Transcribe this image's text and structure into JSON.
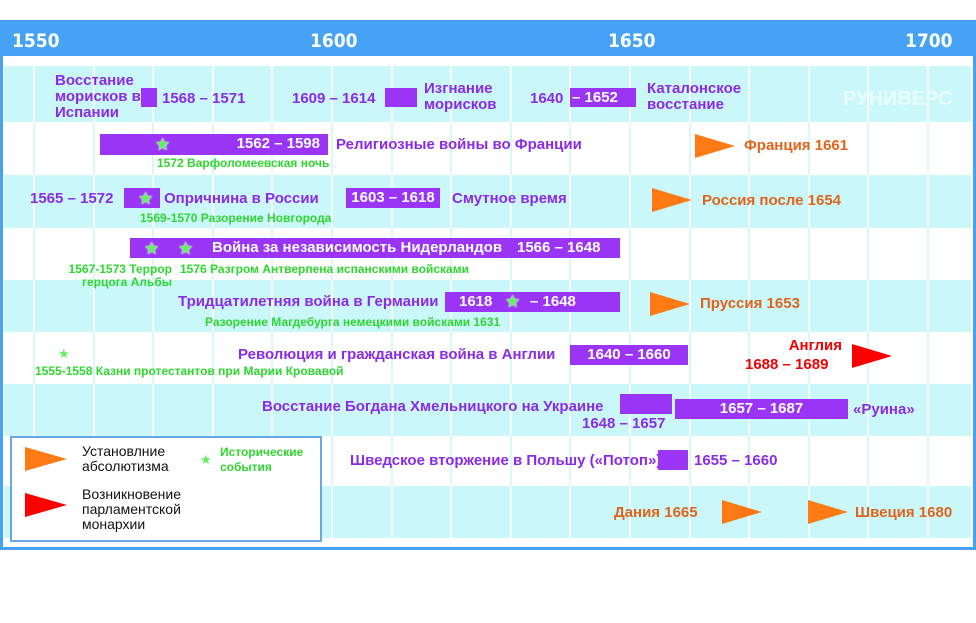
{
  "axis": {
    "years": [
      "1550",
      "1600",
      "1650",
      "1700"
    ]
  },
  "watermark": "РУНИВЕРС",
  "rows": {
    "r1": {
      "moriscos_title": "Восстание морисков в Испании",
      "moriscos_years": "1568 – 1571",
      "expulsion_years": "1609 – 1614",
      "expulsion_title": "Изгнание морисков",
      "catalan_start": "1640",
      "catalan_end": "– 1652",
      "catalan_title": "Каталонское восстание"
    },
    "r2": {
      "bar": "1562 – 1598",
      "title": "Религиозные войны во Франции",
      "event": "1572 Варфоломеевская ночь",
      "arrow": "Франция 1661"
    },
    "r3": {
      "years": "1565 – 1572",
      "title": "Опричнина в России",
      "event": "1569-1570 Разорение Новгорода",
      "bar2": "1603 – 1618",
      "title2": "Смутное время",
      "arrow": "Россия после 1654"
    },
    "r4": {
      "title": "Война за независимость Нидерландов",
      "years": "1566 – 1648",
      "event1": "1567-1573  Террор герцога Альбы",
      "event2": "1576 Разгром Антверпена испанскими войсками"
    },
    "r5": {
      "title": "Тридцатилетняя война в Германии",
      "bar_start": "1618",
      "bar_end": "– 1648",
      "event": "Разорение Магдебурга немецкими войсками 1631",
      "arrow": "Пруссия 1653"
    },
    "r6": {
      "event": "1555-1558 Казни протестантов при Марии Кровавой",
      "title": "Революция и гражданская война в Англии",
      "bar": "1640 – 1660",
      "arrow_line1": "Англия",
      "arrow_line2": "1688 – 1689"
    },
    "r7": {
      "title": "Восстание Богдана Хмельницкого на Украине",
      "years1": "1648 – 1657",
      "bar2": "1657 – 1687",
      "ruina": "«Руина»"
    },
    "r8": {
      "title": "Шведское вторжение в Польшу («Потоп»)",
      "years": "1655 – 1660"
    },
    "r9": {
      "denmark": "Дания 1665",
      "sweden": "Швеция 1680"
    }
  },
  "legend": {
    "absolutism": "Установлние абсолютизма",
    "parliament": "Возникновение парламентской монархии",
    "events": "Исторические события"
  },
  "colors": {
    "header": "#45a2f5",
    "band": "#c9f7fa",
    "bar": "#9a35f5",
    "absolutism": "#ff7a14",
    "parliament": "#ff0000",
    "event": "#2fd62f"
  }
}
